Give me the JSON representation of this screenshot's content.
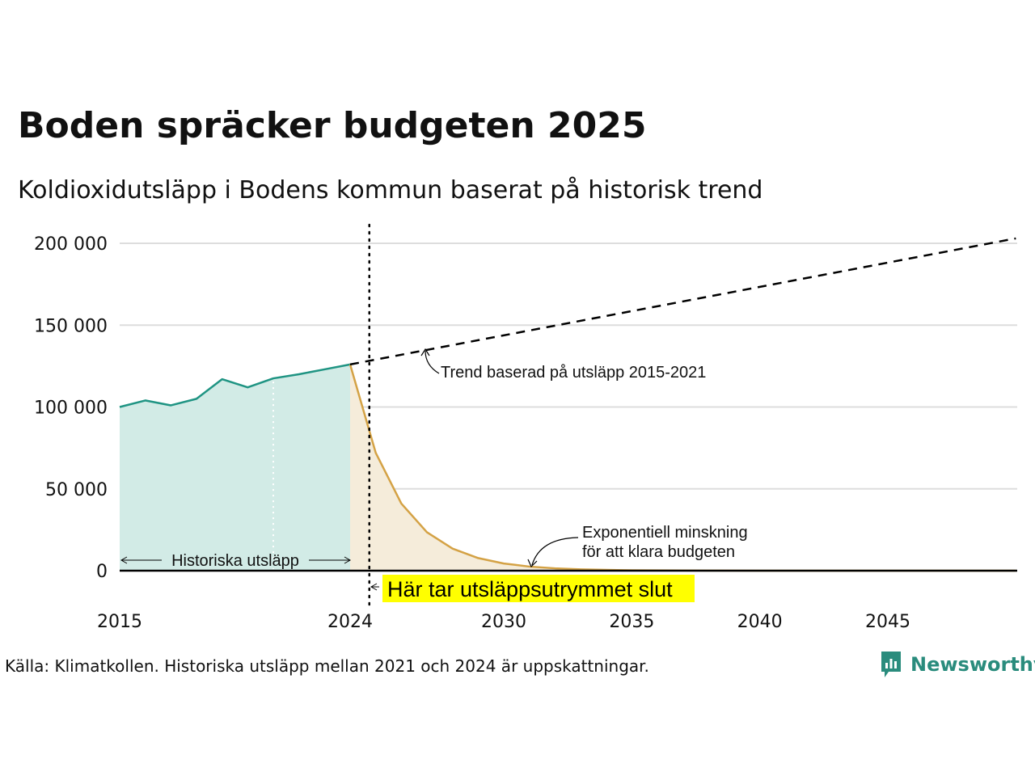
{
  "title": "Boden spräcker budgeten 2025",
  "subtitle": "Koldioxidutsläpp i Bodens kommun baserat på historisk trend",
  "source": "Källa: Klimatkollen. Historiska utsläpp mellan 2021 och 2024 är uppskattningar.",
  "logo": {
    "name": "Newsworthy"
  },
  "colors": {
    "historical_line": "#1f9483",
    "historical_fill": "#d2ebe6",
    "budget_line": "#d4a245",
    "budget_fill": "#f5ecda",
    "trend_line": "#000000",
    "highlight": "#ffff00",
    "grid": "#dddddd"
  },
  "chart_data": {
    "type": "area",
    "title": "Boden spräcker budgeten 2025",
    "ylim": [
      0,
      200000
    ],
    "xlim": [
      2015,
      2050
    ],
    "y_ticks": [
      0,
      50000,
      100000,
      150000,
      200000
    ],
    "y_tick_labels": [
      "0",
      "50 000",
      "100 000",
      "150 000",
      "200 000"
    ],
    "x_ticks": [
      2015,
      2024,
      2030,
      2035,
      2040,
      2045
    ],
    "x_tick_labels": [
      "2015",
      "2024",
      "2030",
      "2035",
      "2040",
      "2045"
    ],
    "grid": true,
    "series": [
      {
        "name": "Historiska utsläpp",
        "kind": "area",
        "x": [
          2015,
          2016,
          2017,
          2018,
          2019,
          2020,
          2021,
          2022,
          2023,
          2024
        ],
        "y": [
          100000,
          104000,
          101000,
          105000,
          117000,
          112000,
          117500,
          120000,
          123000,
          126000
        ]
      },
      {
        "name": "Exponentiell minskning för att klara budgeten",
        "kind": "area",
        "x": [
          2024,
          2025,
          2026,
          2027,
          2028,
          2029,
          2030,
          2031,
          2032,
          2033,
          2034,
          2035,
          2036,
          2038,
          2040,
          2045,
          2050
        ],
        "y": [
          126000,
          72000,
          41000,
          23500,
          13500,
          7700,
          4400,
          2500,
          1450,
          830,
          470,
          270,
          160,
          50,
          20,
          0,
          0
        ]
      },
      {
        "name": "Trend baserad på utsläpp 2015-2021",
        "kind": "dashed",
        "x": [
          2024,
          2050
        ],
        "y": [
          126000,
          203000
        ]
      }
    ],
    "markers": [
      {
        "x": 2021,
        "style": "white-dotted"
      },
      {
        "x": 2024.75,
        "style": "black-dotted"
      }
    ],
    "annotations": {
      "historical": "Historiska utsläpp",
      "trend": "Trend baserad på utsläpp 2015-2021",
      "decay_line1": "Exponentiell minskning",
      "decay_line2": "för att klara budgeten",
      "budget_end": "Här tar utsläppsutrymmet slut"
    }
  }
}
